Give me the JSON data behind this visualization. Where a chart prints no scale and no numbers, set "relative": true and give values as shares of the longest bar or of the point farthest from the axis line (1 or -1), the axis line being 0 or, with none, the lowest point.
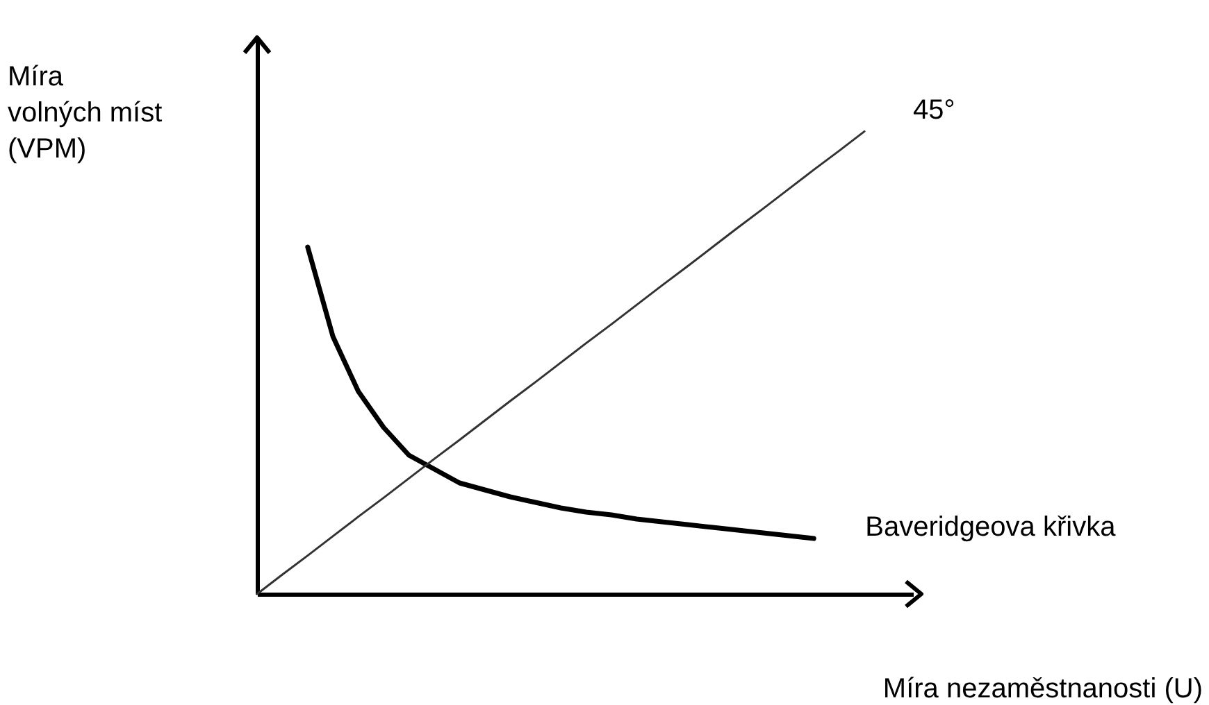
{
  "chart_data": {
    "type": "line",
    "relative": true,
    "xlabel": "Míra nezaměstnanosti (U)",
    "ylabel": "Míra\nvolných míst\n(VPM)",
    "categories": [
      null,
      null,
      null,
      null,
      null,
      null,
      null,
      null,
      null,
      null,
      null,
      null,
      null,
      null,
      null,
      null,
      null,
      null,
      null,
      null,
      null,
      null,
      null,
      null,
      null
    ],
    "series": [
      {
        "name": "Baveridgeova křivka",
        "color": "#000000",
        "values": [
          null,
          null,
          0.75,
          0.556,
          0.438,
          0.36,
          0.3,
          0.27,
          0.24,
          0.225,
          0.21,
          0.198,
          0.186,
          0.177,
          0.171,
          0.162,
          0.156,
          0.15,
          0.144,
          0.138,
          0.132,
          0.126,
          0.12,
          null,
          null
        ]
      },
      {
        "name": "45°",
        "color": "#333333",
        "values": [
          0,
          0.042,
          0.083,
          0.125,
          0.167,
          0.208,
          0.25,
          0.292,
          0.333,
          0.375,
          0.417,
          0.458,
          0.5,
          0.542,
          0.583,
          0.625,
          0.667,
          0.708,
          0.75,
          0.792,
          0.833,
          0.875,
          0.917,
          0.958,
          1
        ]
      }
    ]
  }
}
